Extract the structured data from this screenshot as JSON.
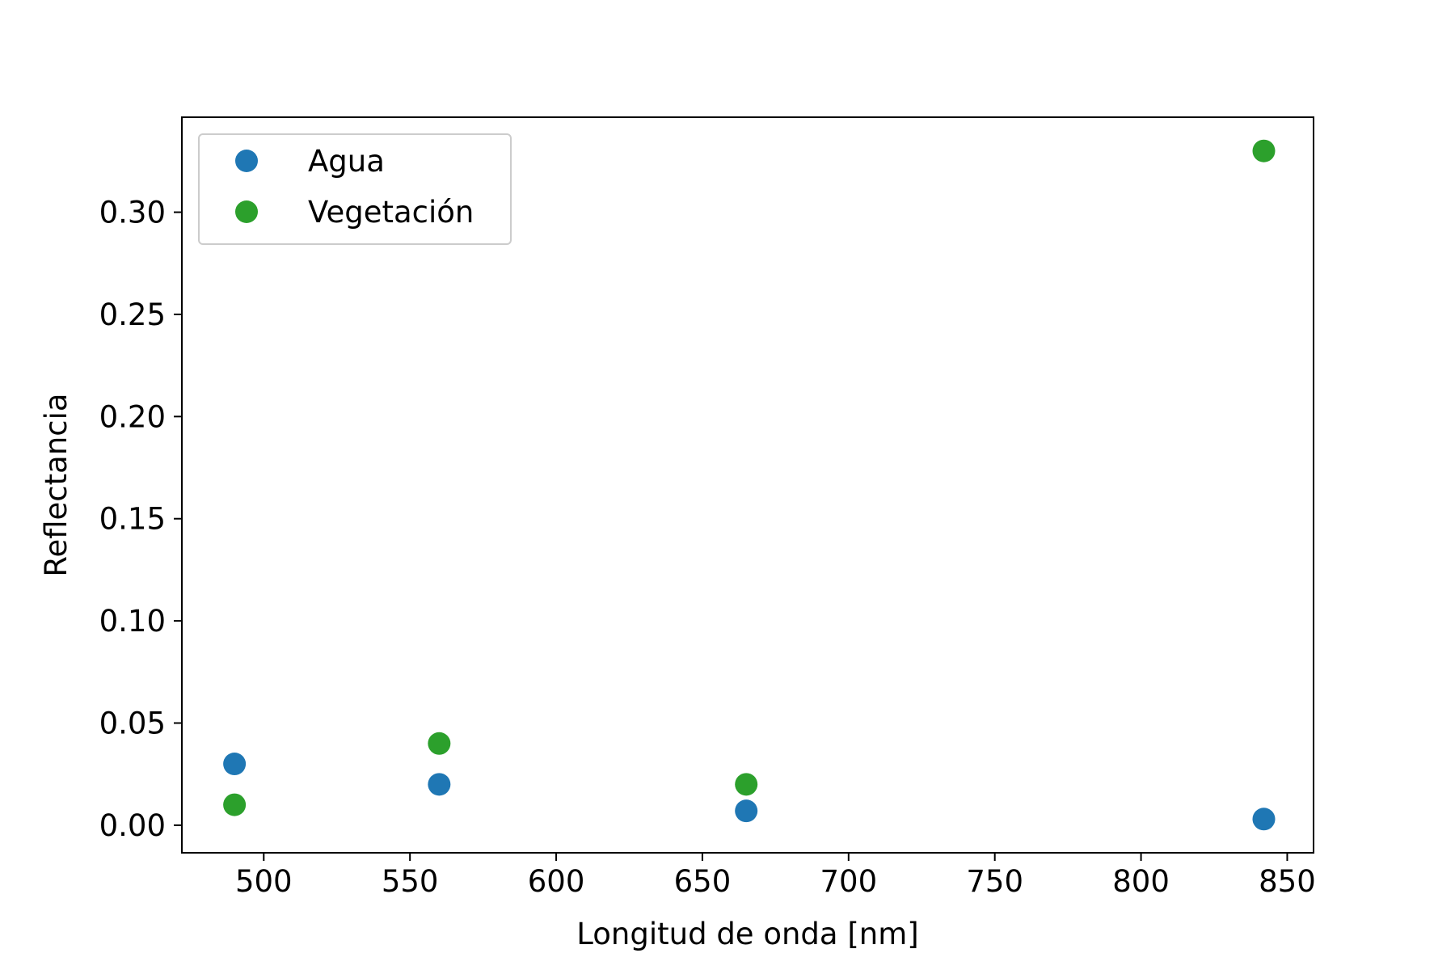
{
  "chart_data": {
    "type": "scatter",
    "title": "",
    "xlabel": "Longitud de onda [nm]",
    "ylabel": "Reflectancia",
    "xlim": [
      472,
      859
    ],
    "ylim": [
      -0.0135,
      0.3465
    ],
    "xticks": [
      500,
      550,
      600,
      650,
      700,
      750,
      800,
      850
    ],
    "xtick_labels": [
      "500",
      "550",
      "600",
      "650",
      "700",
      "750",
      "800",
      "850"
    ],
    "yticks": [
      0.0,
      0.05,
      0.1,
      0.15,
      0.2,
      0.25,
      0.3
    ],
    "ytick_labels": [
      "0.00",
      "0.05",
      "0.10",
      "0.15",
      "0.20",
      "0.25",
      "0.30"
    ],
    "grid": false,
    "legend_position": "top-left",
    "series": [
      {
        "name": "Agua",
        "color": "#1f77b4",
        "x": [
          490,
          560,
          665,
          842
        ],
        "y": [
          0.03,
          0.02,
          0.007,
          0.003
        ]
      },
      {
        "name": "Vegetación",
        "color": "#2ca02c",
        "x": [
          490,
          560,
          665,
          842
        ],
        "y": [
          0.01,
          0.04,
          0.02,
          0.33
        ]
      }
    ]
  }
}
